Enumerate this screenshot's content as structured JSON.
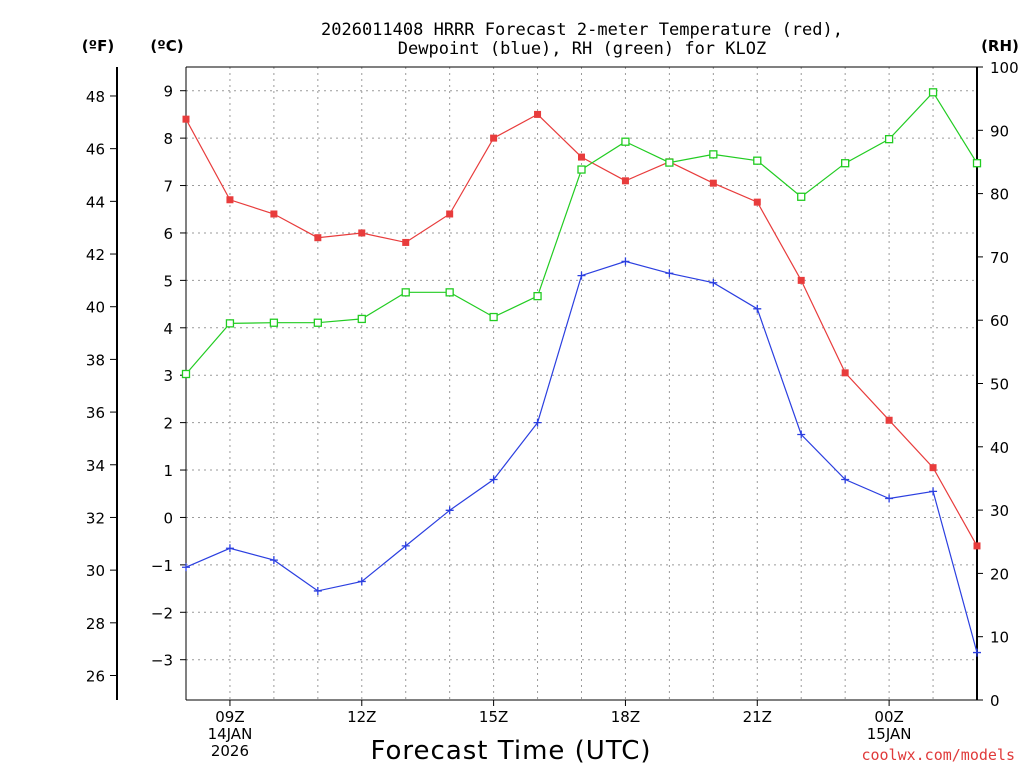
{
  "chart_data": {
    "type": "line",
    "title_line1": "2026011408 HRRR Forecast 2-meter Temperature (red),",
    "title_line2": "Dewpoint (blue), RH (green) for KLOZ",
    "xlabel": "Forecast Time (UTC)",
    "credit": "coolwx.com/models",
    "units": {
      "left_outer": "(ºF)",
      "left_inner": "(ºC)",
      "right": "(RH)"
    },
    "x_hours": [
      8,
      9,
      10,
      11,
      12,
      13,
      14,
      15,
      16,
      17,
      18,
      19,
      20,
      21,
      22,
      23,
      24,
      25,
      26
    ],
    "xlim": [
      8,
      26
    ],
    "x_ticks": [
      {
        "hour": 9,
        "lines": [
          "09Z",
          "14JAN",
          "2026"
        ]
      },
      {
        "hour": 12,
        "lines": [
          "12Z"
        ]
      },
      {
        "hour": 15,
        "lines": [
          "15Z"
        ]
      },
      {
        "hour": 18,
        "lines": [
          "18Z"
        ]
      },
      {
        "hour": 21,
        "lines": [
          "21Z"
        ]
      },
      {
        "hour": 24,
        "lines": [
          "00Z",
          "15JAN"
        ]
      }
    ],
    "celsius_axis": {
      "ylim": [
        -3.85,
        9.5
      ],
      "ticks": [
        -3,
        -2,
        -1,
        0,
        1,
        2,
        3,
        4,
        5,
        6,
        7,
        8,
        9
      ]
    },
    "fahrenheit_axis": {
      "ticks": [
        26,
        28,
        30,
        32,
        34,
        36,
        38,
        40,
        42,
        44,
        46,
        48
      ]
    },
    "rh_axis": {
      "ylim": [
        0,
        100
      ],
      "ticks": [
        0,
        10,
        20,
        30,
        40,
        50,
        60,
        70,
        80,
        90,
        100
      ]
    },
    "series": [
      {
        "name": "Temperature",
        "axis": "celsius",
        "color": "#e83c3c",
        "marker": "filled-square",
        "values": [
          8.4,
          6.7,
          6.4,
          5.9,
          6.0,
          5.8,
          6.4,
          8.0,
          8.5,
          7.6,
          7.1,
          7.5,
          7.05,
          6.65,
          5.0,
          3.05,
          2.05,
          1.05,
          -0.6
        ]
      },
      {
        "name": "Dewpoint",
        "axis": "celsius",
        "color": "#2b3fe0",
        "marker": "plus",
        "values": [
          -1.05,
          -0.65,
          -0.9,
          -1.55,
          -1.35,
          -0.6,
          0.15,
          0.8,
          2.0,
          5.1,
          5.4,
          5.15,
          4.95,
          4.4,
          1.75,
          0.8,
          0.4,
          0.55,
          -2.85
        ]
      },
      {
        "name": "RH",
        "axis": "rh",
        "color": "#22cc22",
        "marker": "open-square",
        "values": [
          51.5,
          59.5,
          59.6,
          59.6,
          60.2,
          64.4,
          64.4,
          60.5,
          63.8,
          83.8,
          88.2,
          84.9,
          86.2,
          85.2,
          79.5,
          84.8,
          88.6,
          96.0,
          84.8
        ]
      }
    ]
  }
}
